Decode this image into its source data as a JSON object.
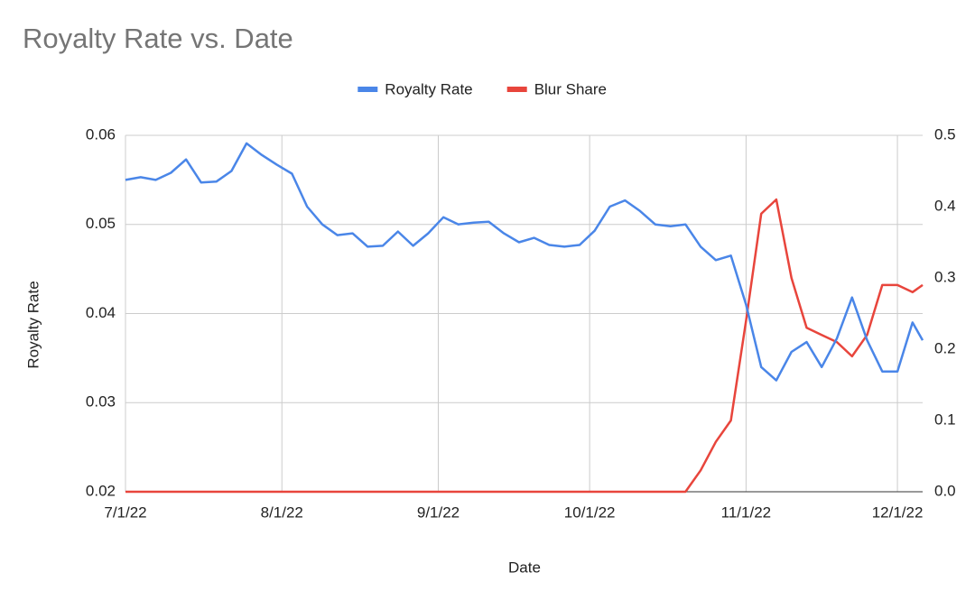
{
  "chart_data": {
    "type": "line",
    "title": "Royalty Rate vs. Date",
    "x_label": "Date",
    "y_label": "Royalty Rate",
    "x": [
      "2022-07-01",
      "2022-07-04",
      "2022-07-07",
      "2022-07-10",
      "2022-07-13",
      "2022-07-16",
      "2022-07-19",
      "2022-07-22",
      "2022-07-25",
      "2022-07-28",
      "2022-07-31",
      "2022-08-03",
      "2022-08-06",
      "2022-08-09",
      "2022-08-12",
      "2022-08-15",
      "2022-08-18",
      "2022-08-21",
      "2022-08-24",
      "2022-08-27",
      "2022-08-30",
      "2022-09-02",
      "2022-09-05",
      "2022-09-08",
      "2022-09-11",
      "2022-09-14",
      "2022-09-17",
      "2022-09-20",
      "2022-09-23",
      "2022-09-26",
      "2022-09-29",
      "2022-10-02",
      "2022-10-05",
      "2022-10-08",
      "2022-10-11",
      "2022-10-14",
      "2022-10-17",
      "2022-10-20",
      "2022-10-23",
      "2022-10-26",
      "2022-10-29",
      "2022-11-01",
      "2022-11-04",
      "2022-11-07",
      "2022-11-10",
      "2022-11-13",
      "2022-11-16",
      "2022-11-19",
      "2022-11-22",
      "2022-11-25",
      "2022-11-28",
      "2022-12-01",
      "2022-12-04",
      "2022-12-06"
    ],
    "series": [
      {
        "name": "Royalty Rate",
        "color": "#4a86e8",
        "values": [
          0.055,
          0.0553,
          0.055,
          0.0558,
          0.0573,
          0.0547,
          0.0548,
          0.056,
          0.0591,
          0.0578,
          0.0567,
          0.0557,
          0.052,
          0.05,
          0.0488,
          0.049,
          0.0475,
          0.0476,
          0.0492,
          0.0476,
          0.049,
          0.0508,
          0.05,
          0.0502,
          0.0503,
          0.049,
          0.048,
          0.0485,
          0.0477,
          0.0475,
          0.0477,
          0.0493,
          0.052,
          0.0527,
          0.0515,
          0.05,
          0.0498,
          0.05,
          0.0475,
          0.046,
          0.0465,
          0.041,
          0.034,
          0.0325,
          0.0357,
          0.0368,
          0.034,
          0.0372,
          0.0418,
          0.037,
          0.0335,
          0.0335,
          0.039,
          0.037
        ]
      },
      {
        "name": "Blur Share",
        "color": "#e8453c",
        "axis": "y2",
        "values": [
          0,
          0,
          0,
          0,
          0,
          0,
          0,
          0,
          0,
          0,
          0,
          0,
          0,
          0,
          0,
          0,
          0,
          0,
          0,
          0,
          0,
          0,
          0,
          0,
          0,
          0,
          0,
          0,
          0,
          0,
          0,
          0,
          0,
          0,
          0,
          0,
          0,
          0,
          0.03,
          0.07,
          0.1,
          0.24,
          0.39,
          0.41,
          0.3,
          0.23,
          0.22,
          0.21,
          0.19,
          0.22,
          0.29,
          0.29,
          0.28,
          0.29
        ]
      }
    ],
    "xlim": [
      "2022-07-01",
      "2022-12-06"
    ],
    "xticks": [
      {
        "value": "2022-07-01",
        "label": "7/1/22"
      },
      {
        "value": "2022-08-01",
        "label": "8/1/22"
      },
      {
        "value": "2022-09-01",
        "label": "9/1/22"
      },
      {
        "value": "2022-10-01",
        "label": "10/1/22"
      },
      {
        "value": "2022-11-01",
        "label": "11/1/22"
      },
      {
        "value": "2022-12-01",
        "label": "12/1/22"
      }
    ],
    "ylim": [
      0.02,
      0.06
    ],
    "yticks": [
      0.02,
      0.03,
      0.04,
      0.05,
      0.06
    ],
    "y2lim": [
      0,
      0.5
    ],
    "y2ticks": [
      {
        "value": 0,
        "label": "0.0"
      },
      0.1,
      0.2,
      0.3,
      0.4,
      0.5
    ],
    "grid": true,
    "legend": "top"
  }
}
